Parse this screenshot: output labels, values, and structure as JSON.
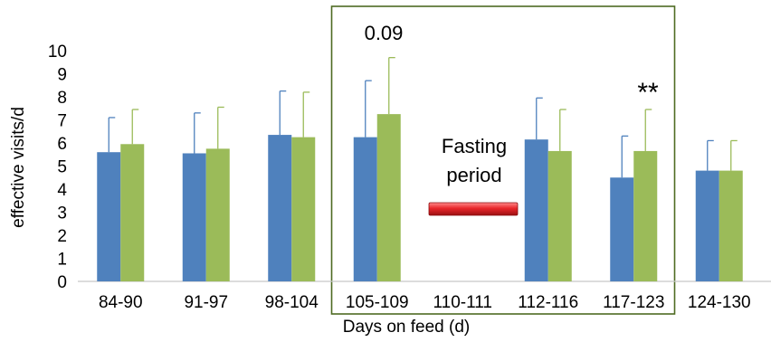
{
  "chart_data": {
    "type": "bar",
    "title": "",
    "xlabel": "Days on feed (d)",
    "ylabel": "effective visits/d",
    "ylim": [
      0,
      10
    ],
    "yticks": [
      0,
      1,
      2,
      3,
      4,
      5,
      6,
      7,
      8,
      9,
      10
    ],
    "grid": false,
    "legend": "none",
    "categories": [
      "84-90",
      "91-97",
      "98-104",
      "105-109",
      "110-111",
      "112-116",
      "117-123",
      "124-130"
    ],
    "series": [
      {
        "color": "#4F81BD",
        "values": [
          5.6,
          5.55,
          6.35,
          6.25,
          null,
          6.15,
          4.5,
          4.8
        ],
        "error": [
          1.5,
          1.75,
          1.9,
          2.45,
          null,
          1.8,
          1.8,
          1.3
        ]
      },
      {
        "color": "#9BBB59",
        "values": [
          5.95,
          5.75,
          6.25,
          7.25,
          null,
          5.65,
          5.65,
          4.8
        ],
        "error": [
          1.5,
          1.8,
          1.95,
          2.45,
          null,
          1.8,
          1.8,
          1.3
        ]
      }
    ],
    "annotations": {
      "pvalue": "0.09",
      "significance": "**",
      "fasting_line1": "Fasting",
      "fasting_line2": "period"
    },
    "highlight_box": {
      "from_category": "105-109",
      "to_category": "117-123",
      "color": "#4E6B22"
    },
    "fasting_marker_color": "#E8262A"
  }
}
